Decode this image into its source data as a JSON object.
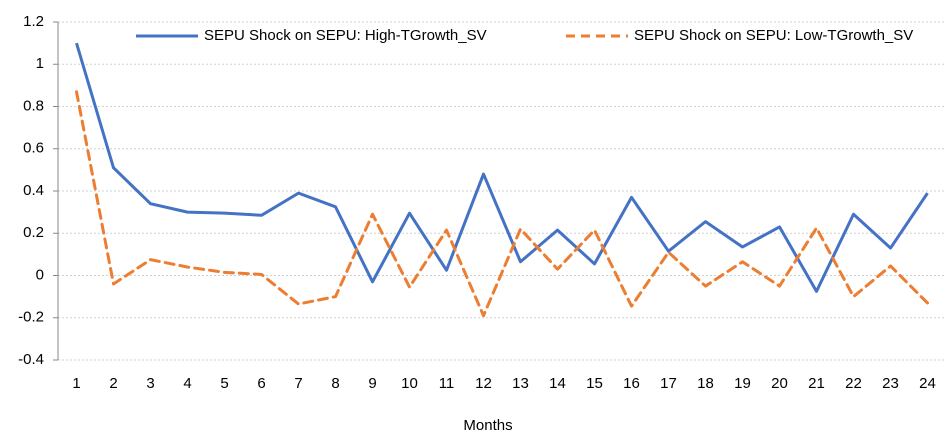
{
  "chart_data": {
    "type": "line",
    "x_label": "Months",
    "categories": [
      "1",
      "2",
      "3",
      "4",
      "5",
      "6",
      "7",
      "8",
      "9",
      "10",
      "11",
      "12",
      "13",
      "14",
      "15",
      "16",
      "17",
      "18",
      "19",
      "20",
      "21",
      "22",
      "23",
      "24"
    ],
    "series": [
      {
        "name": "SEPU Shock on SEPU: High-TGrowth_SV",
        "color": "#4472c4",
        "dashed": false,
        "values": [
          1.1,
          0.51,
          0.34,
          0.3,
          0.295,
          0.285,
          0.39,
          0.325,
          -0.03,
          0.295,
          0.025,
          0.48,
          0.065,
          0.215,
          0.055,
          0.37,
          0.115,
          0.255,
          0.135,
          0.23,
          -0.075,
          0.29,
          0.13,
          0.39
        ]
      },
      {
        "name": "SEPU Shock on SEPU: Low-TGrowth_SV",
        "color": "#ed7d31",
        "dashed": true,
        "values": [
          0.87,
          -0.04,
          0.075,
          0.04,
          0.015,
          0.005,
          -0.135,
          -0.1,
          0.29,
          -0.055,
          0.215,
          -0.19,
          0.22,
          0.03,
          0.215,
          -0.145,
          0.11,
          -0.05,
          0.065,
          -0.05,
          0.225,
          -0.1,
          0.045,
          -0.13
        ]
      }
    ],
    "ylim": [
      -0.4,
      1.2
    ],
    "yticks": [
      -0.4,
      -0.2,
      0,
      0.2,
      0.4,
      0.6,
      0.8,
      1,
      1.2
    ],
    "grid": true,
    "legend": "top"
  }
}
